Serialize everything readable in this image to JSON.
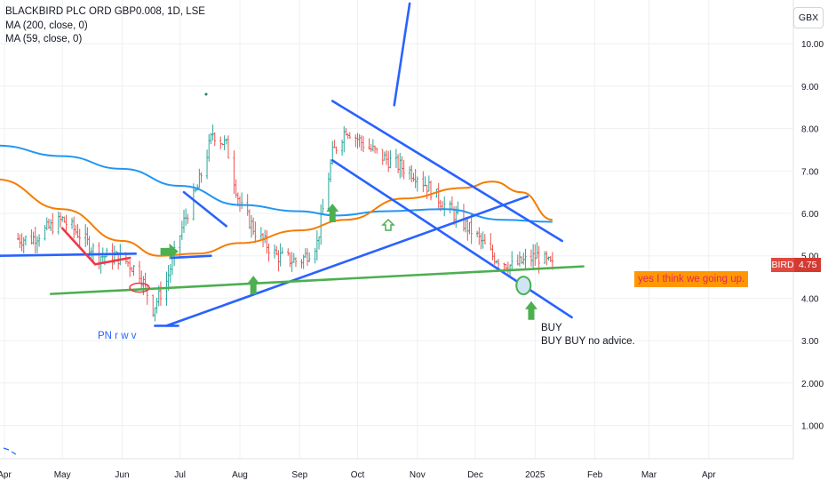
{
  "legend": {
    "symbol_line": "BLACKBIRD PLC ORD GBP0.008, 1D, LSE",
    "ma1_label": "MA (200, close, 0)",
    "ma2_label": "MA (59, close, 0)"
  },
  "currency_label": "GBX",
  "last_price": {
    "symbol": "BIRD",
    "value": "4.75"
  },
  "annotations": {
    "orange_note": "yes I think we going up.",
    "buy_line1": "BUY",
    "buy_line2": "BUY BUY no advice.",
    "pn_text": "PN r w v"
  },
  "colors": {
    "ma200": "#2196f3",
    "ma59": "#f57c00",
    "trend_blue": "#2962ff",
    "trend_green": "#4caf50",
    "candle_up": "#26a69a",
    "candle_down": "#ef5350",
    "red_line": "#f23645",
    "grid": "#eef0f3",
    "axis_text": "#131722"
  },
  "chart_data": {
    "type": "candlestick",
    "title": "BLACKBIRD PLC ORD GBP0.008, 1D, LSE",
    "y_unit": "GBX",
    "ylim": [
      0,
      11
    ],
    "y_ticks": [
      "1.000",
      "2.000",
      "3.00",
      "4.00",
      "5.00",
      "6.00",
      "7.00",
      "8.00",
      "9.00",
      "10.00"
    ],
    "y_tick_values": [
      1,
      2,
      3,
      4,
      5,
      6,
      7,
      8,
      9,
      10
    ],
    "x_ticks": [
      "Apr",
      "May",
      "Jun",
      "Jul",
      "Aug",
      "Sep",
      "Oct",
      "Nov",
      "Dec",
      "2025",
      "Feb",
      "Mar",
      "Apr"
    ],
    "x_tick_dates": [
      "2024-04-01",
      "2024-05-01",
      "2024-06-01",
      "2024-07-01",
      "2024-08-01",
      "2024-09-01",
      "2024-10-01",
      "2024-11-01",
      "2024-12-01",
      "2025-01-01",
      "2025-02-01",
      "2025-03-01",
      "2025-04-01"
    ],
    "last_value": 4.75,
    "price_series": [
      {
        "date": "2024-04-15",
        "value": 5.4
      },
      {
        "date": "2024-05-01",
        "value": 5.85
      },
      {
        "date": "2024-05-10",
        "value": 5.5
      },
      {
        "date": "2024-05-20",
        "value": 5.0
      },
      {
        "date": "2024-06-01",
        "value": 4.95
      },
      {
        "date": "2024-06-10",
        "value": 4.6
      },
      {
        "date": "2024-06-17",
        "value": 3.75
      },
      {
        "date": "2024-06-24",
        "value": 4.4
      },
      {
        "date": "2024-07-03",
        "value": 5.8
      },
      {
        "date": "2024-07-10",
        "value": 6.6
      },
      {
        "date": "2024-07-18",
        "value": 7.9
      },
      {
        "date": "2024-07-25",
        "value": 7.6
      },
      {
        "date": "2024-08-01",
        "value": 6.2
      },
      {
        "date": "2024-08-10",
        "value": 5.5
      },
      {
        "date": "2024-08-20",
        "value": 5.0
      },
      {
        "date": "2024-09-01",
        "value": 4.85
      },
      {
        "date": "2024-09-10",
        "value": 5.3
      },
      {
        "date": "2024-09-18",
        "value": 7.4
      },
      {
        "date": "2024-09-25",
        "value": 8.0
      },
      {
        "date": "2024-10-05",
        "value": 7.6
      },
      {
        "date": "2024-10-15",
        "value": 7.3
      },
      {
        "date": "2024-11-01",
        "value": 6.9
      },
      {
        "date": "2024-11-15",
        "value": 6.2
      },
      {
        "date": "2024-12-01",
        "value": 5.5
      },
      {
        "date": "2024-12-10",
        "value": 5.0
      },
      {
        "date": "2024-12-20",
        "value": 4.75
      },
      {
        "date": "2025-01-02",
        "value": 5.0
      },
      {
        "date": "2025-01-10",
        "value": 4.75
      }
    ],
    "series": [
      {
        "name": "MA (200, close, 0)",
        "color": "#2196f3",
        "points": [
          {
            "date": "2024-03-28",
            "value": 7.6
          },
          {
            "date": "2024-05-01",
            "value": 7.35
          },
          {
            "date": "2024-06-01",
            "value": 7.05
          },
          {
            "date": "2024-07-01",
            "value": 6.65
          },
          {
            "date": "2024-08-01",
            "value": 6.2
          },
          {
            "date": "2024-09-01",
            "value": 6.05
          },
          {
            "date": "2024-09-20",
            "value": 5.95
          },
          {
            "date": "2024-10-15",
            "value": 6.05
          },
          {
            "date": "2024-11-15",
            "value": 6.1
          },
          {
            "date": "2024-12-15",
            "value": 5.85
          },
          {
            "date": "2025-01-10",
            "value": 5.8
          }
        ]
      },
      {
        "name": "MA (59, close, 0)",
        "color": "#f57c00",
        "points": [
          {
            "date": "2024-03-28",
            "value": 6.8
          },
          {
            "date": "2024-05-01",
            "value": 6.1
          },
          {
            "date": "2024-06-01",
            "value": 5.35
          },
          {
            "date": "2024-06-20",
            "value": 5.0
          },
          {
            "date": "2024-07-10",
            "value": 5.05
          },
          {
            "date": "2024-08-01",
            "value": 5.3
          },
          {
            "date": "2024-09-01",
            "value": 5.6
          },
          {
            "date": "2024-09-25",
            "value": 5.85
          },
          {
            "date": "2024-10-25",
            "value": 6.35
          },
          {
            "date": "2024-11-25",
            "value": 6.6
          },
          {
            "date": "2024-12-10",
            "value": 6.75
          },
          {
            "date": "2024-12-25",
            "value": 6.5
          },
          {
            "date": "2025-01-10",
            "value": 5.85
          }
        ]
      }
    ],
    "drawings": [
      {
        "kind": "trendline",
        "color": "blue",
        "from": {
          "date": "2024-03-28",
          "value": 5.0
        },
        "to": {
          "date": "2024-06-08",
          "value": 5.05
        }
      },
      {
        "kind": "trendline",
        "color": "blue",
        "from": {
          "date": "2024-06-24",
          "value": 3.35
        },
        "to": {
          "date": "2024-12-28",
          "value": 6.4
        }
      },
      {
        "kind": "trendline",
        "color": "blue",
        "from": {
          "date": "2024-09-18",
          "value": 8.65
        },
        "to": {
          "date": "2025-01-15",
          "value": 5.35
        }
      },
      {
        "kind": "trendline",
        "color": "blue",
        "from": {
          "date": "2024-09-18",
          "value": 7.25
        },
        "to": {
          "date": "2025-01-20",
          "value": 3.55
        }
      },
      {
        "kind": "trendline",
        "color": "blue",
        "from": {
          "date": "2024-10-20",
          "value": 8.55
        },
        "to": {
          "date": "2024-10-28",
          "value": 10.95
        }
      },
      {
        "kind": "trendline",
        "color": "blue",
        "from": {
          "date": "2024-07-03",
          "value": 6.5
        },
        "to": {
          "date": "2024-07-25",
          "value": 5.7
        }
      },
      {
        "kind": "trendline",
        "color": "blue",
        "from": {
          "date": "2024-06-18",
          "value": 3.35
        },
        "to": {
          "date": "2024-06-30",
          "value": 3.35
        }
      },
      {
        "kind": "trendline",
        "color": "blue",
        "from": {
          "date": "2024-06-26",
          "value": 4.95
        },
        "to": {
          "date": "2024-07-17",
          "value": 5.0
        }
      },
      {
        "kind": "trendline",
        "color": "green",
        "from": {
          "date": "2024-04-25",
          "value": 4.1
        },
        "to": {
          "date": "2025-01-26",
          "value": 4.75
        }
      },
      {
        "kind": "trendline",
        "color": "red",
        "from": {
          "date": "2024-05-01",
          "value": 5.65
        },
        "to": {
          "date": "2024-05-18",
          "value": 4.8
        }
      },
      {
        "kind": "trendline",
        "color": "red",
        "from": {
          "date": "2024-05-18",
          "value": 4.8
        },
        "to": {
          "date": "2024-06-05",
          "value": 4.95
        }
      },
      {
        "kind": "arrow-up",
        "color": "green",
        "date": "2024-08-08",
        "value": 4.3
      },
      {
        "kind": "arrow-up",
        "color": "green",
        "date": "2024-09-18",
        "value": 6.0
      },
      {
        "kind": "arrow-up",
        "color": "green",
        "date": "2024-12-30",
        "value": 3.7
      },
      {
        "kind": "arrow-right",
        "color": "green",
        "date": "2024-06-25",
        "value": 5.1
      },
      {
        "kind": "circle",
        "color": "green",
        "date": "2024-12-26",
        "value": 4.3
      },
      {
        "kind": "ellipse",
        "color": "red",
        "date": "2024-06-10",
        "value": 4.25
      }
    ]
  }
}
